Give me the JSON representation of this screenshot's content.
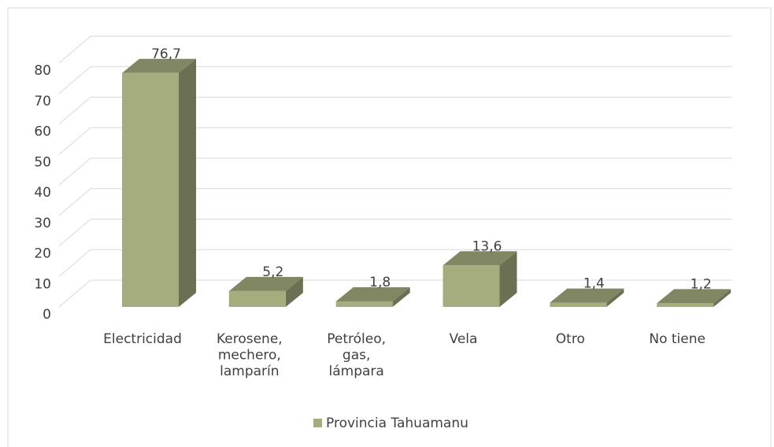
{
  "chart_data": {
    "type": "bar3d",
    "categories": [
      "Electricidad",
      "Kerosene,\nmechero,\nlamparín",
      "Petróleo,\ngas,\nlámpara",
      "Vela",
      "Otro",
      "No tiene"
    ],
    "series": [
      {
        "name": "Provincia Tahuamanu",
        "color": "#a5ad7e",
        "values": [
          76.7,
          5.2,
          1.8,
          13.6,
          1.4,
          1.2
        ],
        "value_labels": [
          "76,7",
          "5,2",
          "1,8",
          "13,6",
          "1,4",
          "1,2"
        ]
      }
    ],
    "ylim": [
      0,
      80
    ],
    "yticks": [
      0,
      10,
      20,
      30,
      40,
      50,
      60,
      70,
      80
    ],
    "grid": true,
    "legend": "bottom"
  }
}
